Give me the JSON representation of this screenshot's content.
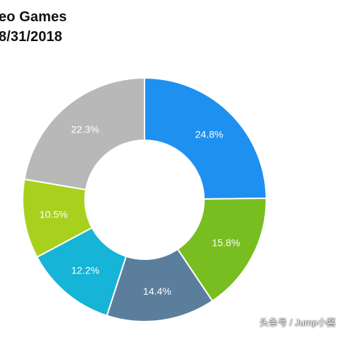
{
  "header": {
    "title_line1": "eo Games",
    "title_line2": "8/31/2018"
  },
  "watermark": "头条号 / Jump小酱",
  "chart_data": {
    "type": "pie",
    "donut": true,
    "title": "eo Games 8/31/2018",
    "start_angle_deg": 0,
    "direction": "clockwise",
    "slices": [
      {
        "value": 24.8,
        "label": "24.8%",
        "color": "#1e90f0"
      },
      {
        "value": 15.8,
        "label": "15.8%",
        "color": "#78be21"
      },
      {
        "value": 14.4,
        "label": "14.4%",
        "color": "#5b7e9c"
      },
      {
        "value": 12.2,
        "label": "12.2%",
        "color": "#16b4d6"
      },
      {
        "value": 10.5,
        "label": "10.5%",
        "color": "#a8d11e"
      },
      {
        "value": 22.3,
        "label": "22.3%",
        "color": "#b8b8b8"
      }
    ]
  }
}
